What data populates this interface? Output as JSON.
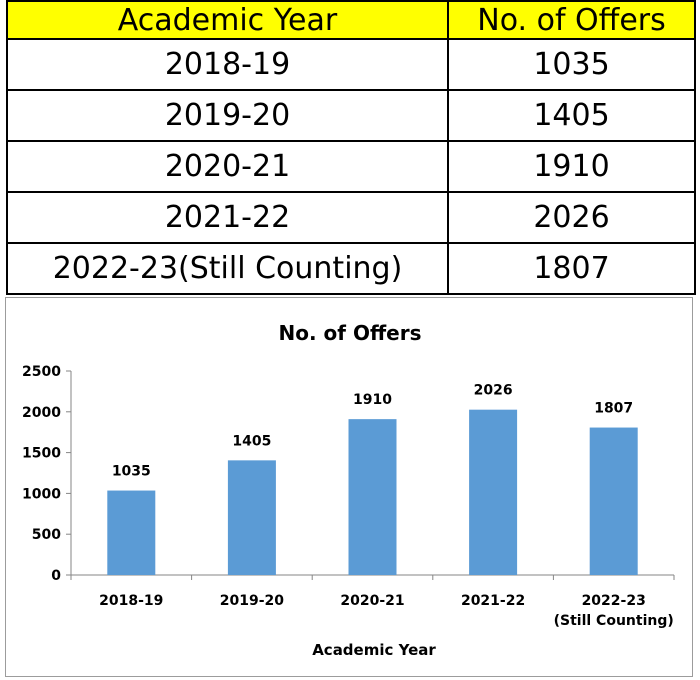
{
  "table": {
    "headers": [
      "Academic Year",
      "No. of Offers"
    ],
    "rows": [
      [
        "2018-19",
        "1035"
      ],
      [
        "2019-20",
        "1405"
      ],
      [
        "2020-21",
        "1910"
      ],
      [
        "2021-22",
        "2026"
      ],
      [
        "2022-23(Still Counting)",
        "1807"
      ]
    ],
    "header_color": "#ffff00"
  },
  "chart_data": {
    "type": "bar",
    "title": "No. of Offers",
    "xlabel": "Academic Year",
    "ylabel": "",
    "categories": [
      "2018-19",
      "2019-20",
      "2020-21",
      "2021-22",
      "2022-23 (Still Counting)"
    ],
    "category_lines": [
      [
        "2018-19"
      ],
      [
        "2019-20"
      ],
      [
        "2020-21"
      ],
      [
        "2021-22"
      ],
      [
        "2022-23",
        "(Still Counting)"
      ]
    ],
    "values": [
      1035,
      1405,
      1910,
      2026,
      1807
    ],
    "ylim": [
      0,
      2500
    ],
    "yticks": [
      0,
      500,
      1000,
      1500,
      2000,
      2500
    ],
    "bar_color": "#5b9bd5",
    "grid": false,
    "legend": "none"
  }
}
